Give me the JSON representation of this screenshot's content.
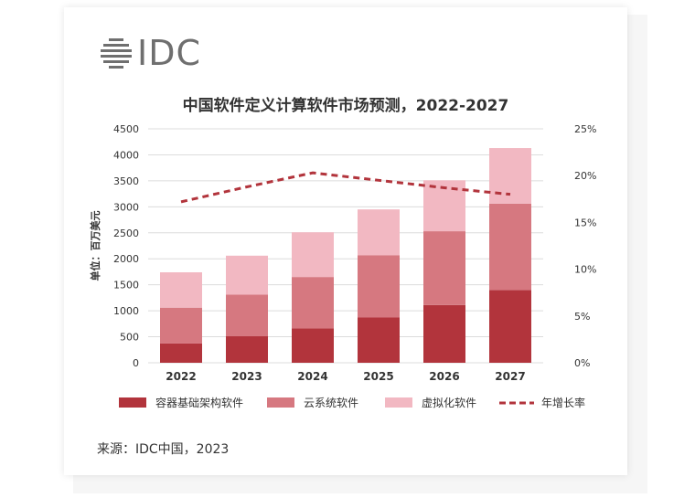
{
  "brand": {
    "logo_text": "IDC"
  },
  "source_text": "来源：IDC中国，2023",
  "chart_data": {
    "type": "bar",
    "title": "中国软件定义计算软件市场预测，2022-2027",
    "ylabel": "单位：百万美元",
    "y2label": "",
    "categories": [
      "2022",
      "2023",
      "2024",
      "2025",
      "2026",
      "2027"
    ],
    "y_ticks": [
      "0",
      "500",
      "1000",
      "1500",
      "2000",
      "2500",
      "3000",
      "3500",
      "4000",
      "4500"
    ],
    "y2_ticks": [
      "0%",
      "5%",
      "10%",
      "15%",
      "20%",
      "25%"
    ],
    "ylim": [
      0,
      4500
    ],
    "y2lim": [
      0,
      25
    ],
    "grid": true,
    "legend_position": "bottom",
    "series": [
      {
        "name": "容器基础架构软件",
        "color": "#b2343c",
        "values": [
          370,
          510,
          660,
          870,
          1110,
          1400
        ]
      },
      {
        "name": "云系统软件",
        "color": "#d67880",
        "values": [
          690,
          800,
          990,
          1200,
          1420,
          1660
        ]
      },
      {
        "name": "虚拟化软件",
        "color": "#f2b8c2",
        "values": [
          680,
          750,
          860,
          880,
          980,
          1070
        ]
      }
    ],
    "line_series": {
      "name": "年增长率",
      "color": "#b2343c",
      "dashed": true,
      "axis": "right",
      "values": [
        17.2,
        18.8,
        20.3,
        19.5,
        18.7,
        18.0
      ]
    }
  }
}
